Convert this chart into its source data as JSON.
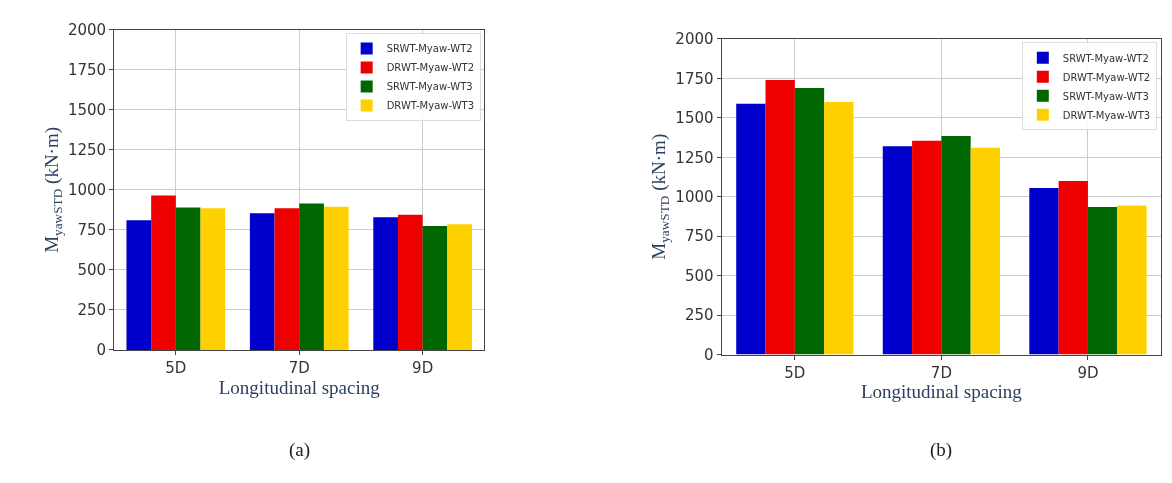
{
  "chart_data": [
    {
      "type": "bar",
      "xlabel": "Longitudinal spacing",
      "ylabel": "M$_{yawSTD}$ (kN·m)",
      "categories": [
        "5D",
        "7D",
        "9D"
      ],
      "series": [
        {
          "name": "SRWT-Myaw-WT2",
          "color": "#0000cc",
          "values": [
            810,
            855,
            830
          ]
        },
        {
          "name": "DRWT-Myaw-WT2",
          "color": "#ee0000",
          "values": [
            965,
            885,
            845
          ]
        },
        {
          "name": "SRWT-Myaw-WT3",
          "color": "#006600",
          "values": [
            890,
            915,
            775
          ]
        },
        {
          "name": "DRWT-Myaw-WT3",
          "color": "#ffd000",
          "values": [
            885,
            895,
            785
          ]
        }
      ],
      "ylim": [
        0,
        2000
      ],
      "yticks": [
        0,
        250,
        500,
        750,
        1000,
        1250,
        1500,
        1750,
        2000
      ],
      "grid": true,
      "legend": "top right",
      "annotations": [
        "(a)"
      ]
    },
    {
      "type": "bar",
      "xlabel": "Longitudinal spacing",
      "ylabel": "M$_{yawSTD}$ (kN·m)",
      "categories": [
        "5D",
        "7D",
        "9D"
      ],
      "series": [
        {
          "name": "SRWT-Myaw-WT2",
          "color": "#0000cc",
          "values": [
            1590,
            1320,
            1055
          ]
        },
        {
          "name": "DRWT-Myaw-WT2",
          "color": "#ee0000",
          "values": [
            1740,
            1355,
            1100
          ]
        },
        {
          "name": "SRWT-Myaw-WT3",
          "color": "#006600",
          "values": [
            1690,
            1385,
            935
          ]
        },
        {
          "name": "DRWT-Myaw-WT3",
          "color": "#ffd000",
          "values": [
            1600,
            1310,
            945
          ]
        }
      ],
      "ylim": [
        0,
        2000
      ],
      "yticks": [
        0,
        250,
        500,
        750,
        1000,
        1250,
        1500,
        1750,
        2000
      ],
      "grid": true,
      "legend": "top right",
      "annotations": [
        "(b)"
      ]
    }
  ]
}
